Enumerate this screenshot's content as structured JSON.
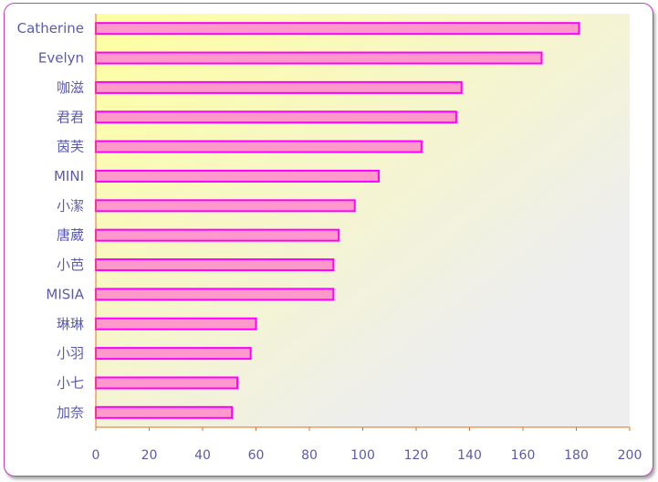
{
  "chart_data": {
    "type": "bar",
    "orientation": "horizontal",
    "categories": [
      "Catherine",
      "Evelyn",
      "咖滋",
      "君君",
      "茵芙",
      "MINI",
      "小潔",
      "唐葳",
      "小芭",
      "MISIA",
      "琳琳",
      "小羽",
      "小七",
      "加奈"
    ],
    "values": [
      181,
      167,
      137,
      135,
      122,
      106,
      97,
      91,
      89,
      89,
      60,
      58,
      53,
      51
    ],
    "xlim": [
      0,
      200
    ],
    "xticks": [
      0,
      20,
      40,
      60,
      80,
      100,
      120,
      140,
      160,
      180,
      200
    ],
    "grid": false,
    "colors": {
      "bar_fill": "#ff99cc",
      "bar_stroke": "#ff00ff",
      "axis": "#e07020",
      "plot_bg_start": "#ffffa0",
      "plot_bg_end": "#eeeeee",
      "label": "#5a5ab0"
    }
  }
}
